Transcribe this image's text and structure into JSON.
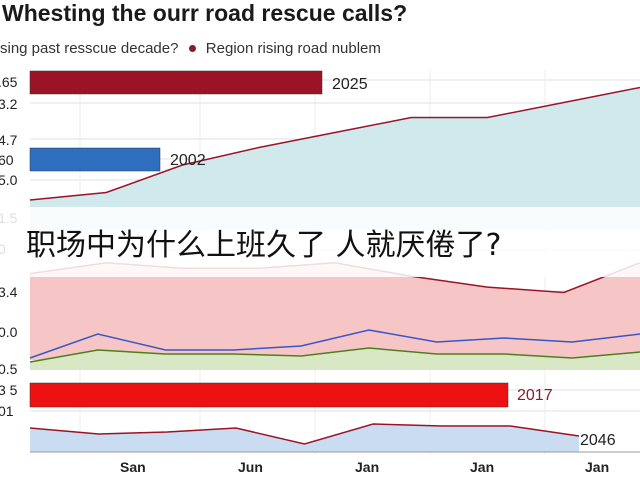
{
  "header": {
    "title": "Whesting the ourr road rescue calls?",
    "subtitle_left": "sing past resscue decade?",
    "subtitle_right": "Region rising road nublem"
  },
  "caption": "职场中为什么上班久了 人就厌倦了?",
  "colors": {
    "dark_red": "#9b1426",
    "blue": "#2f6fbf",
    "bright_red": "#ee1111",
    "teal_fill": "#cfe9ec",
    "pink_fill": "#f6c6c6",
    "green_fill": "#d9e8c4",
    "lightblue_fill": "#c9dcf2"
  },
  "chart_data": {
    "type": "bar",
    "x_ticks": [
      "San",
      "Jun",
      "Jan",
      "Jan",
      "Jan"
    ],
    "y_ticks": [
      ".65",
      "3.2",
      "4.7",
      "60",
      "5.0",
      "1.5",
      "0",
      "3.4",
      "0.0",
      "0.5",
      "3 5",
      "01"
    ],
    "bars": [
      {
        "label": "2025",
        "color": "dark_red"
      },
      {
        "label": "2002",
        "color": "blue"
      },
      {
        "label": "2017",
        "color": "bright_red"
      }
    ],
    "end_label": "2046",
    "teal_area": {
      "values": [
        1.2,
        1.5,
        2.6,
        3.3,
        3.9,
        4.5,
        4.5,
        5.1,
        5.7
      ]
    },
    "pink_area": {
      "values": [
        3.2,
        3.6,
        3.4,
        3.4,
        3.6,
        3.1,
        2.7,
        2.5,
        3.6
      ]
    },
    "blue_line": {
      "values": [
        0.3,
        0.9,
        0.5,
        0.5,
        0.6,
        1.0,
        0.7,
        0.8,
        0.7,
        0.9
      ]
    },
    "green_area": {
      "values": [
        0.2,
        0.5,
        0.4,
        0.4,
        0.35,
        0.55,
        0.4,
        0.4,
        0.3,
        0.45
      ]
    },
    "bottom_area": {
      "values": [
        0.6,
        0.45,
        0.5,
        0.6,
        0.2,
        0.7,
        0.65,
        0.65,
        0.4
      ]
    }
  }
}
